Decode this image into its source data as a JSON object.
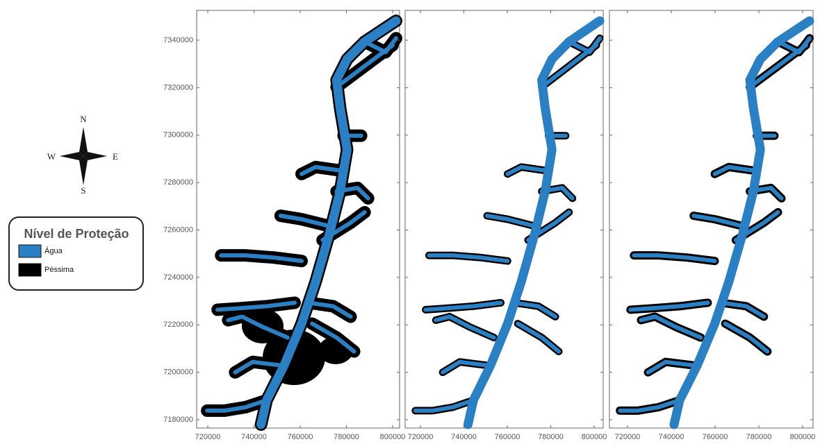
{
  "compass": {
    "north": "N",
    "south": "S",
    "west": "W",
    "east": "E"
  },
  "legend": {
    "title": "Nível de Proteção",
    "items": [
      {
        "label": "Água",
        "color": "#2b7fc3"
      },
      {
        "label": "Péssima",
        "color": "#000000"
      }
    ]
  },
  "y_axis": {
    "ticks": [
      7340000,
      7320000,
      7300000,
      7280000,
      7260000,
      7240000,
      7220000,
      7200000,
      7180000
    ]
  },
  "panels": [
    {
      "x_ticks": [
        720000,
        740000,
        760000,
        780000,
        800000
      ]
    },
    {
      "x_ticks": [
        720000,
        740000,
        760000,
        780000,
        800000
      ]
    },
    {
      "x_ticks": [
        720000,
        740000,
        760000,
        780000,
        800000
      ]
    }
  ]
}
